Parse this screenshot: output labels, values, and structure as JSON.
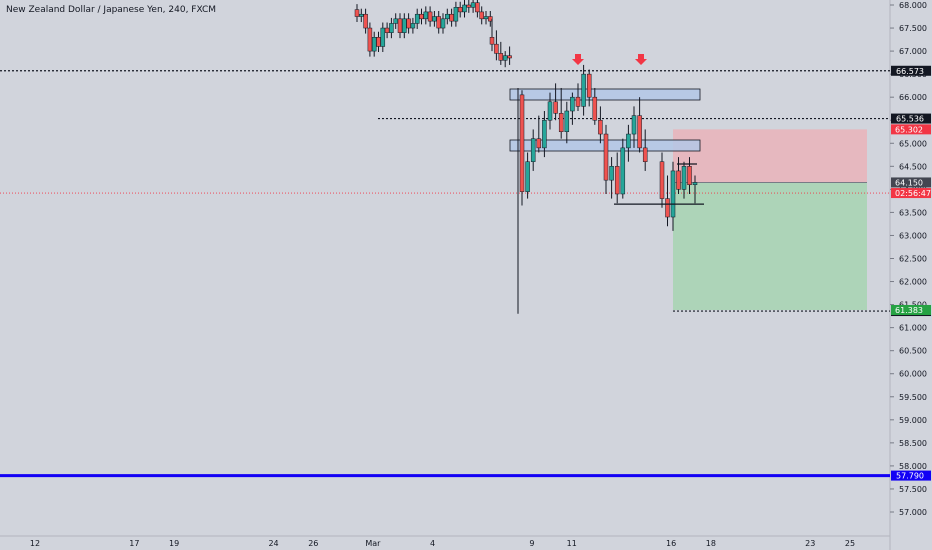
{
  "chart_data": {
    "type": "candlestick",
    "title": "New Zealand Dollar / Japanese Yen, 240, FXCM",
    "symbol": "NZDJPY",
    "timeframe": "240",
    "source": "FXCM",
    "y_axis": {
      "range": [
        56.6,
        68.2
      ],
      "ticks": [
        "68.000",
        "67.500",
        "67.000",
        "66.500",
        "66.000",
        "65.500",
        "65.000",
        "64.500",
        "64.000",
        "63.500",
        "63.000",
        "62.500",
        "62.000",
        "61.500",
        "61.000",
        "60.500",
        "60.000",
        "59.500",
        "59.000",
        "58.500",
        "58.000",
        "57.500",
        "57.000"
      ],
      "position": "right"
    },
    "x_axis": {
      "labels": [
        {
          "t": 3,
          "text": "12"
        },
        {
          "t": 8,
          "text": "17"
        },
        {
          "t": 10,
          "text": "19"
        },
        {
          "t": 15,
          "text": "24"
        },
        {
          "t": 17,
          "text": "26"
        },
        {
          "t": 20,
          "text": "Mar"
        },
        {
          "t": 23,
          "text": "4"
        },
        {
          "t": 28,
          "text": "9"
        },
        {
          "t": 30,
          "text": "11"
        },
        {
          "t": 35,
          "text": "16"
        },
        {
          "t": 37,
          "text": "18"
        },
        {
          "t": 42,
          "text": "23"
        },
        {
          "t": 44,
          "text": "25"
        }
      ]
    },
    "candles_2": [
      {
        "o": 67.3,
        "h": 67.7,
        "l": 67.0,
        "c": 67.15
      },
      {
        "o": 67.15,
        "h": 67.45,
        "l": 66.8,
        "c": 66.95
      },
      {
        "o": 66.95,
        "h": 67.2,
        "l": 66.7,
        "c": 66.8
      },
      {
        "o": 66.8,
        "h": 67.0,
        "l": 66.65,
        "c": 66.9
      },
      {
        "o": 66.9,
        "h": 67.1,
        "l": 66.7,
        "c": 66.85
      }
    ],
    "candles_1": [
      {
        "o": 66.05,
        "h": 66.15,
        "l": 63.65,
        "c": 63.95
      },
      {
        "o": 63.95,
        "h": 64.8,
        "l": 63.8,
        "c": 64.6
      },
      {
        "o": 64.6,
        "h": 65.3,
        "l": 64.4,
        "c": 65.1
      },
      {
        "o": 65.1,
        "h": 65.6,
        "l": 64.8,
        "c": 64.9
      },
      {
        "o": 64.9,
        "h": 65.7,
        "l": 64.7,
        "c": 65.5
      },
      {
        "o": 65.5,
        "h": 66.1,
        "l": 65.3,
        "c": 65.9
      },
      {
        "o": 65.9,
        "h": 66.3,
        "l": 65.5,
        "c": 65.65
      },
      {
        "o": 65.65,
        "h": 66.2,
        "l": 65.1,
        "c": 65.25
      },
      {
        "o": 65.25,
        "h": 65.9,
        "l": 65.0,
        "c": 65.7
      },
      {
        "o": 65.7,
        "h": 66.1,
        "l": 65.4,
        "c": 66.0
      },
      {
        "o": 66.0,
        "h": 66.3,
        "l": 65.7,
        "c": 65.8
      },
      {
        "o": 65.8,
        "h": 66.7,
        "l": 65.6,
        "c": 66.5
      },
      {
        "o": 66.5,
        "h": 66.6,
        "l": 65.8,
        "c": 66.0
      },
      {
        "o": 66.0,
        "h": 66.2,
        "l": 65.4,
        "c": 65.5
      },
      {
        "o": 65.5,
        "h": 65.8,
        "l": 65.0,
        "c": 65.2
      },
      {
        "o": 65.2,
        "h": 65.4,
        "l": 63.9,
        "c": 64.2
      },
      {
        "o": 64.2,
        "h": 64.7,
        "l": 63.8,
        "c": 64.5
      },
      {
        "o": 64.5,
        "h": 64.8,
        "l": 63.7,
        "c": 63.9
      },
      {
        "o": 63.9,
        "h": 65.1,
        "l": 63.8,
        "c": 64.9
      },
      {
        "o": 64.9,
        "h": 65.4,
        "l": 64.6,
        "c": 65.2
      },
      {
        "o": 65.2,
        "h": 65.8,
        "l": 64.9,
        "c": 65.6
      },
      {
        "o": 65.6,
        "h": 66.0,
        "l": 64.8,
        "c": 64.9
      },
      {
        "o": 64.9,
        "h": 65.3,
        "l": 64.4,
        "c": 64.6
      }
    ],
    "candles_3": [
      {
        "o": 64.6,
        "h": 64.8,
        "l": 63.6,
        "c": 63.8
      },
      {
        "o": 63.8,
        "h": 64.3,
        "l": 63.2,
        "c": 63.4
      },
      {
        "o": 63.4,
        "h": 64.6,
        "l": 63.1,
        "c": 64.4
      },
      {
        "o": 64.4,
        "h": 64.7,
        "l": 63.9,
        "c": 64.0
      },
      {
        "o": 64.0,
        "h": 64.6,
        "l": 63.8,
        "c": 64.5
      },
      {
        "o": 64.5,
        "h": 64.7,
        "l": 63.9,
        "c": 64.1
      },
      {
        "o": 64.1,
        "h": 64.3,
        "l": 63.7,
        "c": 64.15
      }
    ],
    "horizontal_levels": [
      {
        "price": 66.573,
        "label": "66.573",
        "style": "dotted",
        "color": "#131722"
      },
      {
        "price": 65.536,
        "label": "65.536",
        "style": "dotted",
        "color": "#131722"
      },
      {
        "price": 61.36,
        "label": "61.360",
        "style": "dotted",
        "color": "#131722"
      },
      {
        "price": 57.79,
        "label": "57.790",
        "style": "solid",
        "color": "#1200f5"
      }
    ],
    "price_labels": [
      {
        "price": 65.302,
        "text": "65.302",
        "bg": "#f23645",
        "fg": "#ffffff"
      },
      {
        "price": 64.15,
        "text": "64.150",
        "bg": "#434651",
        "fg": "#ffffff"
      },
      {
        "price": 63.92,
        "text": "02:56:47",
        "bg": "#f23645",
        "fg": "#ffffff"
      },
      {
        "price": 61.383,
        "text": "61.383",
        "bg": "#26a243",
        "fg": "#ffffff"
      }
    ],
    "position": {
      "type": "short",
      "entry": 64.15,
      "stop": 65.302,
      "target": 61.383
    },
    "colors": {
      "background": "#d1d4dc",
      "up": "#26a69a",
      "down": "#ef5350",
      "wick": "#131722",
      "zone_fill": "#b3c7e6",
      "zone_stroke": "#131722",
      "arrow": "#f23645",
      "current_price_line": "#f23645"
    }
  }
}
